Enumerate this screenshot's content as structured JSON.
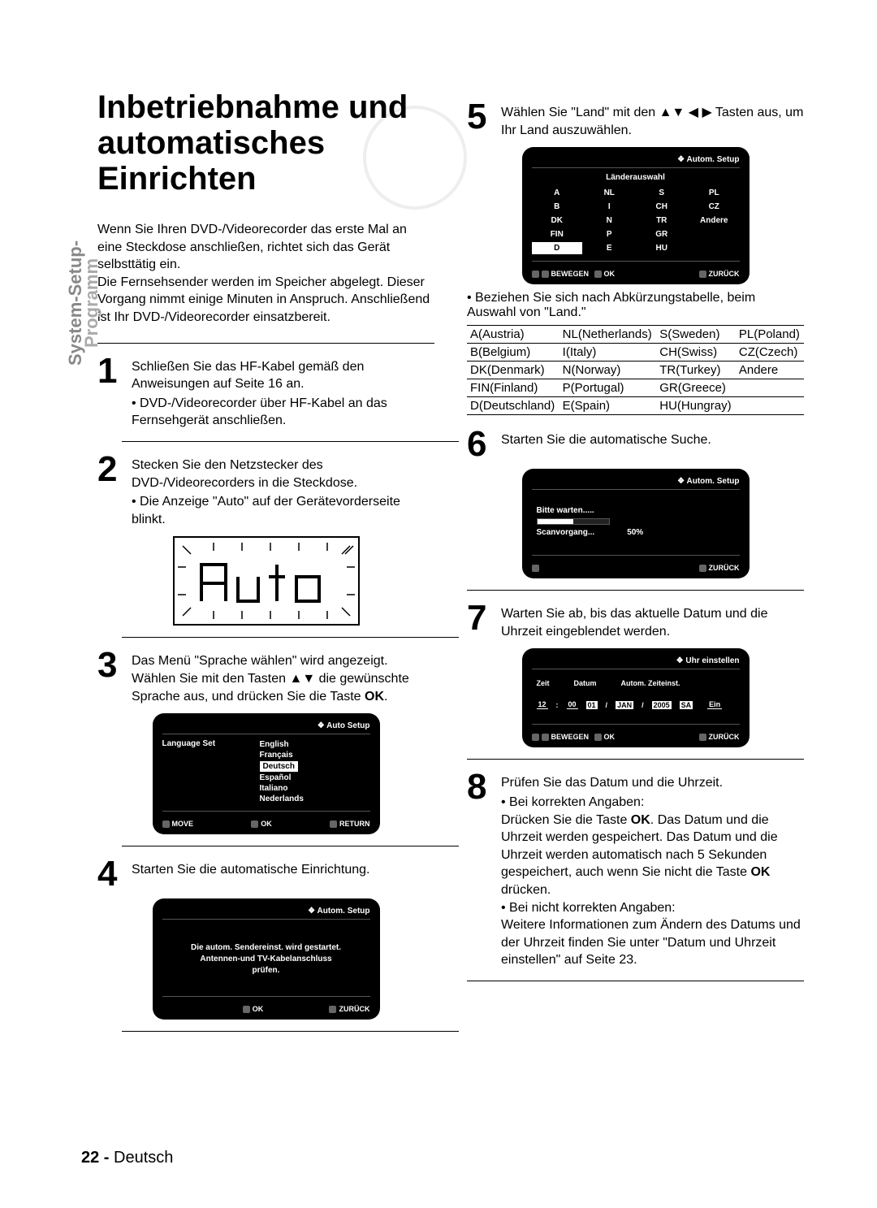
{
  "sidebar": {
    "line1": "System-Setup-",
    "line2": "Programm"
  },
  "title": "Inbetriebnahme und\nautomatisches Einrichten",
  "intro": "Wenn Sie Ihren DVD-/Videorecorder das erste Mal an eine Steckdose anschließen, richtet sich das Gerät selbsttätig ein.\nDie Fernsehsender werden im Speicher abgelegt. Dieser Vorgang nimmt einige Minuten in Anspruch. Anschließend ist Ihr DVD-/Videorecorder einsatzbereit.",
  "steps": {
    "s1": {
      "text": "Schließen Sie das HF-Kabel gemäß den Anweisungen auf Seite 16 an.",
      "bullet": "DVD-/Videorecorder über HF-Kabel an das Fernsehgerät anschließen."
    },
    "s2": {
      "text": "Stecken Sie den Netzstecker des DVD-/Videorecorders in die Steckdose.",
      "bullet": "Die Anzeige \"Auto\" auf der Gerätevorderseite blinkt."
    },
    "s3": {
      "text_a": "Das Menü \"Sprache wählen\" wird angezeigt.",
      "text_b": "Wählen Sie mit den Tasten ▲▼ die gewünschte Sprache aus, und drücken Sie die Taste ",
      "ok": "OK",
      "period": "."
    },
    "s4": {
      "text": "Starten Sie die automatische Einrichtung."
    },
    "s5": {
      "text_a": "Wählen Sie \"Land\" mit den ▲▼ ◀ ▶ Tasten aus, um Ihr Land auszuwählen."
    },
    "s5_note": "Beziehen Sie sich nach Abkürzungstabelle, beim Auswahl von \"Land.\"",
    "s6": {
      "text": "Starten Sie die automatische Suche."
    },
    "s7": {
      "text": "Warten Sie ab, bis das aktuelle Datum und die Uhrzeit eingeblendet werden."
    },
    "s8": {
      "line1": "Prüfen Sie das Datum und die Uhrzeit.",
      "b1_label": "Bei korrekten Angaben:",
      "b1_text_a": "Drücken Sie die Taste ",
      "b1_ok1": "OK",
      "b1_text_b": ". Das Datum und die Uhrzeit werden gespeichert. Das Datum und die Uhrzeit werden automatisch nach 5 Sekunden gespeichert, auch wenn Sie nicht die Taste ",
      "b1_ok2": "OK",
      "b1_text_c": " drücken.",
      "b2_label": "Bei nicht korrekten Angaben:",
      "b2_text": "Weitere Informationen zum Ändern des Datums und der Uhrzeit finden Sie unter \"Datum und Uhrzeit einstellen\" auf Seite 23."
    }
  },
  "osd_lang": {
    "title": "Auto Setup",
    "left_label": "Language Set",
    "langs": [
      "English",
      "Français",
      "Deutsch",
      "Español",
      "Italiano",
      "Nederlands"
    ],
    "selected": "Deutsch",
    "foot_left": "MOVE",
    "foot_mid": "OK",
    "foot_right": "RETURN"
  },
  "osd_auto": {
    "title": "Autom. Setup",
    "lines": [
      "Die autom. Sendereinst. wird gestartet.",
      "Antennen-und TV-Kabelanschluss",
      "prüfen."
    ],
    "foot_mid": "OK",
    "foot_right": "ZURÜCK"
  },
  "osd_country": {
    "title": "Autom. Setup",
    "header": "Länderauswahl",
    "grid": [
      [
        "A",
        "NL",
        "S",
        "PL"
      ],
      [
        "B",
        "I",
        "CH",
        "CZ"
      ],
      [
        "DK",
        "N",
        "TR",
        "Andere"
      ],
      [
        "FIN",
        "P",
        "GR",
        ""
      ],
      [
        "D",
        "E",
        "HU",
        ""
      ]
    ],
    "selected": "D",
    "foot_left": "BEWEGEN",
    "foot_mid": "OK",
    "foot_right": "ZURÜCK"
  },
  "abbr_table": [
    [
      "A(Austria)",
      "NL(Netherlands)",
      "S(Sweden)",
      "PL(Poland)"
    ],
    [
      "B(Belgium)",
      "I(Italy)",
      "CH(Swiss)",
      "CZ(Czech)"
    ],
    [
      "DK(Denmark)",
      "N(Norway)",
      "TR(Turkey)",
      "Andere"
    ],
    [
      "FIN(Finland)",
      "P(Portugal)",
      "GR(Greece)",
      ""
    ],
    [
      "D(Deutschland)",
      "E(Spain)",
      "HU(Hungray)",
      ""
    ]
  ],
  "osd_scan": {
    "title": "Autom. Setup",
    "wait": "Bitte warten.....",
    "progress_label": "Scanvorgang...",
    "progress_value": "50%",
    "foot_right": "ZURÜCK"
  },
  "osd_time": {
    "title": "Uhr einstellen",
    "col_zeit": "Zeit",
    "col_datum": "Datum",
    "col_auto": "Autom. Zeiteinst.",
    "hh": "12",
    "mm": "00",
    "dd": "01",
    "mon": "JAN",
    "yy": "2005",
    "dow": "SA",
    "auto": "Ein",
    "foot_left": "BEWEGEN",
    "foot_mid": "OK",
    "foot_right": "ZURÜCK"
  },
  "auto_display": "Auto",
  "page_footer": {
    "num": "22 -",
    "lang": "Deutsch"
  }
}
